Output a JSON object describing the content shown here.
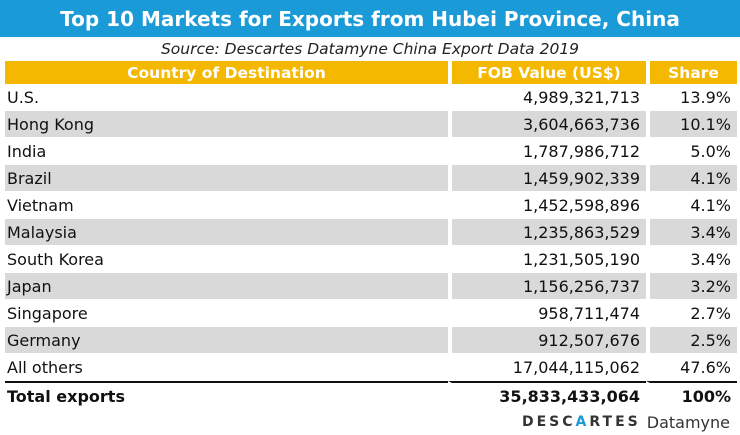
{
  "chart_data": {
    "type": "table",
    "title": "Top 10 Markets for Exports from Hubei Province, China",
    "subtitle": "Source: Descartes Datamyne China Export Data  2019",
    "columns": [
      "Country of Destination",
      "FOB Value (US$)",
      "Share"
    ],
    "rows": [
      {
        "country": "U.S.",
        "value": "4,989,321,713",
        "share": "13.9%"
      },
      {
        "country": "Hong Kong",
        "value": "3,604,663,736",
        "share": "10.1%"
      },
      {
        "country": "India",
        "value": "1,787,986,712",
        "share": "5.0%"
      },
      {
        "country": "Brazil",
        "value": "1,459,902,339",
        "share": "4.1%"
      },
      {
        "country": "Vietnam",
        "value": "1,452,598,896",
        "share": "4.1%"
      },
      {
        "country": "Malaysia",
        "value": "1,235,863,529",
        "share": "3.4%"
      },
      {
        "country": "South Korea",
        "value": "1,231,505,190",
        "share": "3.4%"
      },
      {
        "country": "Japan",
        "value": "1,156,256,737",
        "share": "3.2%"
      },
      {
        "country": "Singapore",
        "value": "958,711,474",
        "share": "2.7%"
      },
      {
        "country": "Germany",
        "value": "912,507,676",
        "share": "2.5%"
      },
      {
        "country": "All others",
        "value": "17,044,115,062",
        "share": "47.6%"
      }
    ],
    "total": {
      "country": "Total exports",
      "value": "35,833,433,064",
      "share": "100%"
    }
  },
  "colors": {
    "title_bar": "#1a9ad6",
    "header_bar": "#f5b800",
    "alt_row": "#d9d9d9"
  },
  "logo": {
    "brand_pre": "DESC",
    "brand_mark": "A",
    "brand_post": "RTES",
    "sub": "Datamyne"
  }
}
